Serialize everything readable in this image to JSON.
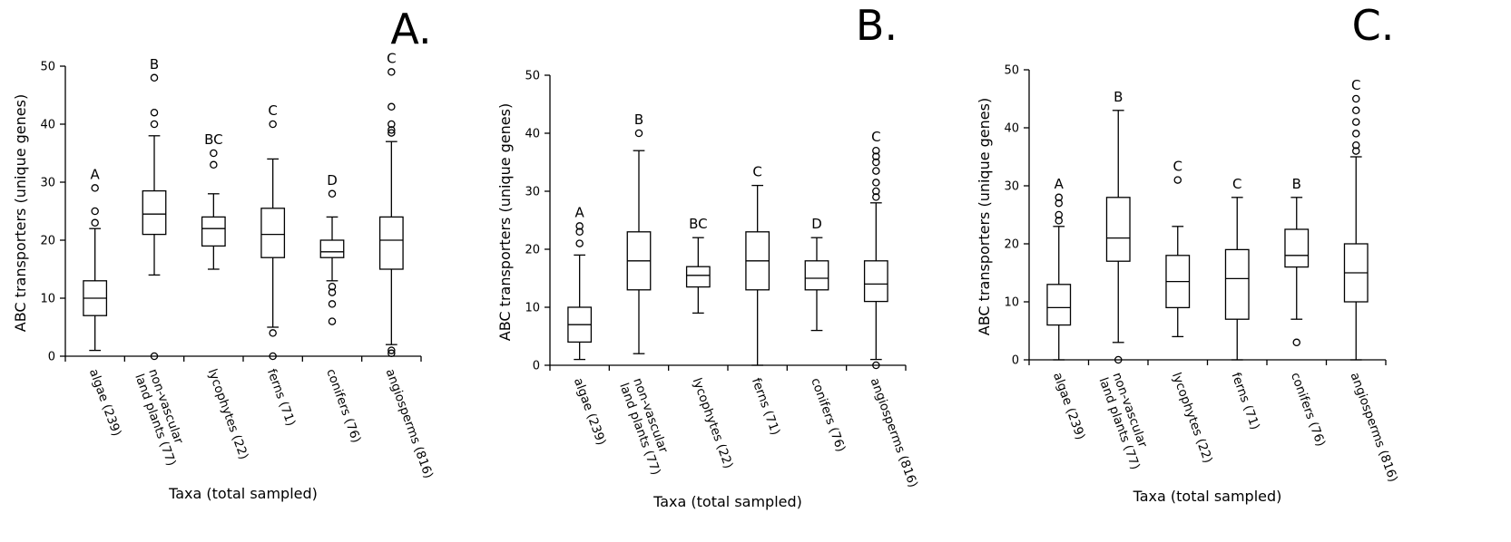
{
  "chart_data": [
    {
      "type": "boxplot",
      "panel_label": "A.",
      "ylabel": "ABC transporters (unique genes)",
      "xlabel": "Taxa (total sampled)",
      "ylim": [
        0,
        50
      ],
      "yticks": [
        0,
        10,
        20,
        30,
        40,
        50
      ],
      "categories": [
        [
          "algae (239)"
        ],
        [
          "non-vascular",
          "land plants (77)"
        ],
        [
          "lycophytes (22)"
        ],
        [
          "ferns (71)"
        ],
        [
          "conifers (76)"
        ],
        [
          "angiosperms (816)"
        ]
      ],
      "boxes": [
        {
          "whisker_low": 1,
          "q1": 7,
          "median": 10,
          "q3": 13,
          "whisker_high": 22,
          "outliers": [
            23,
            25,
            29
          ],
          "group": "A"
        },
        {
          "whisker_low": 14,
          "q1": 21,
          "median": 24.5,
          "q3": 28.5,
          "whisker_high": 38,
          "outliers": [
            0,
            40,
            42,
            48
          ],
          "group": "B"
        },
        {
          "whisker_low": 15,
          "q1": 19,
          "median": 22,
          "q3": 24,
          "whisker_high": 28,
          "outliers": [
            33,
            35
          ],
          "group": "BC"
        },
        {
          "whisker_low": 5,
          "q1": 17,
          "median": 21,
          "q3": 25.5,
          "whisker_high": 34,
          "outliers": [
            0,
            4,
            40
          ],
          "group": "C"
        },
        {
          "whisker_low": 13,
          "q1": 17,
          "median": 18,
          "q3": 20,
          "whisker_high": 24,
          "outliers": [
            6,
            9,
            11,
            12,
            28
          ],
          "group": "D"
        },
        {
          "whisker_low": 2,
          "q1": 15,
          "median": 20,
          "q3": 24,
          "whisker_high": 37,
          "outliers": [
            0.5,
            1,
            38.5,
            39,
            40,
            43,
            49
          ],
          "group": "C"
        }
      ]
    },
    {
      "type": "boxplot",
      "panel_label": "B.",
      "ylabel": "ABC transporters (unique genes)",
      "xlabel": "Taxa (total sampled)",
      "ylim": [
        0,
        50
      ],
      "yticks": [
        0,
        10,
        20,
        30,
        40,
        50
      ],
      "categories": [
        [
          "algae (239)"
        ],
        [
          "non-vascular",
          "land plants (77)"
        ],
        [
          "lycophytes (22)"
        ],
        [
          "ferns (71)"
        ],
        [
          "conifers (76)"
        ],
        [
          "angiosperms (816)"
        ]
      ],
      "boxes": [
        {
          "whisker_low": 1,
          "q1": 4,
          "median": 7,
          "q3": 10,
          "whisker_high": 19,
          "outliers": [
            21,
            23,
            24
          ],
          "group": "A"
        },
        {
          "whisker_low": 2,
          "q1": 13,
          "median": 18,
          "q3": 23,
          "whisker_high": 37,
          "outliers": [
            40
          ],
          "group": "B"
        },
        {
          "whisker_low": 9,
          "q1": 13.5,
          "median": 15.5,
          "q3": 17,
          "whisker_high": 22,
          "outliers": [],
          "group": "BC"
        },
        {
          "whisker_low": 0,
          "q1": 13,
          "median": 18,
          "q3": 23,
          "whisker_high": 31,
          "outliers": [],
          "group": "C"
        },
        {
          "whisker_low": 6,
          "q1": 13,
          "median": 15,
          "q3": 18,
          "whisker_high": 22,
          "outliers": [],
          "group": "D"
        },
        {
          "whisker_low": 1,
          "q1": 11,
          "median": 14,
          "q3": 18,
          "whisker_high": 28,
          "outliers": [
            0,
            29,
            30,
            31.5,
            33.5,
            35,
            36,
            37
          ],
          "group": "C"
        }
      ]
    },
    {
      "type": "boxplot",
      "panel_label": "C.",
      "ylabel": "ABC transporters (unique genes)",
      "xlabel": "Taxa (total sampled)",
      "ylim": [
        0,
        50
      ],
      "yticks": [
        0,
        10,
        20,
        30,
        40,
        50
      ],
      "categories": [
        [
          "algae (239)"
        ],
        [
          "non-vascular",
          "land plants (77)"
        ],
        [
          "lycophytes (22)"
        ],
        [
          "ferns (71)"
        ],
        [
          "conifers (76)"
        ],
        [
          "angiosperms (816)"
        ]
      ],
      "boxes": [
        {
          "whisker_low": 0,
          "q1": 6,
          "median": 9,
          "q3": 13,
          "whisker_high": 23,
          "outliers": [
            24,
            25,
            27,
            28
          ],
          "group": "A"
        },
        {
          "whisker_low": 3,
          "q1": 17,
          "median": 21,
          "q3": 28,
          "whisker_high": 43,
          "outliers": [
            0
          ],
          "group": "B"
        },
        {
          "whisker_low": 4,
          "q1": 9,
          "median": 13.5,
          "q3": 18,
          "whisker_high": 23,
          "outliers": [
            31
          ],
          "group": "C"
        },
        {
          "whisker_low": 0,
          "q1": 7,
          "median": 14,
          "q3": 19,
          "whisker_high": 28,
          "outliers": [],
          "group": "C"
        },
        {
          "whisker_low": 7,
          "q1": 16,
          "median": 18,
          "q3": 22.5,
          "whisker_high": 28,
          "outliers": [
            3
          ],
          "group": "B"
        },
        {
          "whisker_low": 0,
          "q1": 10,
          "median": 15,
          "q3": 20,
          "whisker_high": 35,
          "outliers": [
            36,
            37,
            39,
            41,
            43,
            45
          ],
          "group": "C"
        }
      ]
    }
  ]
}
